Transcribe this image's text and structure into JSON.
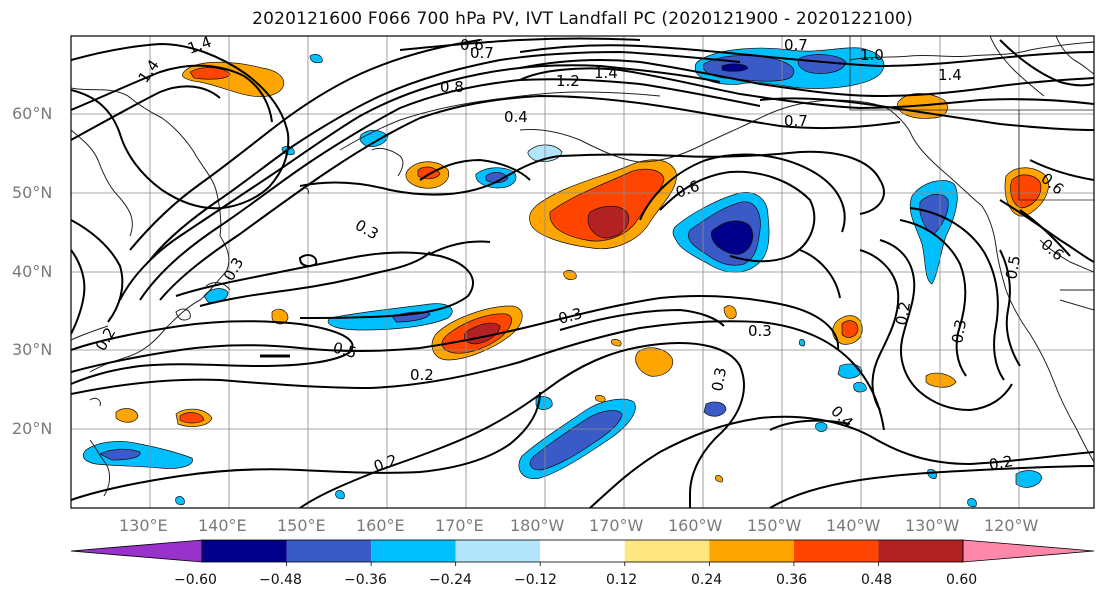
{
  "title": "2020121600 F066 700 hPa PV, IVT Landfall PC (2020121900 - 2020122100)",
  "lat_labels": [
    "60°N",
    "50°N",
    "40°N",
    "30°N",
    "20°N"
  ],
  "lon_labels": [
    "130°E",
    "140°E",
    "150°E",
    "160°E",
    "170°E",
    "180°W",
    "170°W",
    "160°W",
    "150°W",
    "140°W",
    "130°W",
    "120°W"
  ],
  "contour_labels": [
    "1.4",
    "1.4",
    "0.8",
    "0.4",
    "0.7",
    "0.6",
    "0.7",
    "1.0",
    "1.4",
    "0.7",
    "1.2",
    "1.4",
    "0.6",
    "0.3",
    "0.3",
    "0.5",
    "0.2",
    "0.3",
    "0.3",
    "0.3",
    "0.4",
    "0.2",
    "0.3",
    "0.5",
    "0.6",
    "0.2",
    "0.2",
    "0.6",
    "0.2"
  ],
  "colorbar": {
    "ticks": [
      "−0.60",
      "−0.48",
      "−0.36",
      "−0.24",
      "−0.12",
      "0.12",
      "0.24",
      "0.36",
      "0.48",
      "0.60"
    ],
    "colors": [
      "#9932cc",
      "#00008b",
      "#3a5bc7",
      "#00bfff",
      "#b3e5fc",
      "#ffffff",
      "#ffe680",
      "#ffa500",
      "#ff4500",
      "#b22222",
      "#ff88aa"
    ]
  }
}
